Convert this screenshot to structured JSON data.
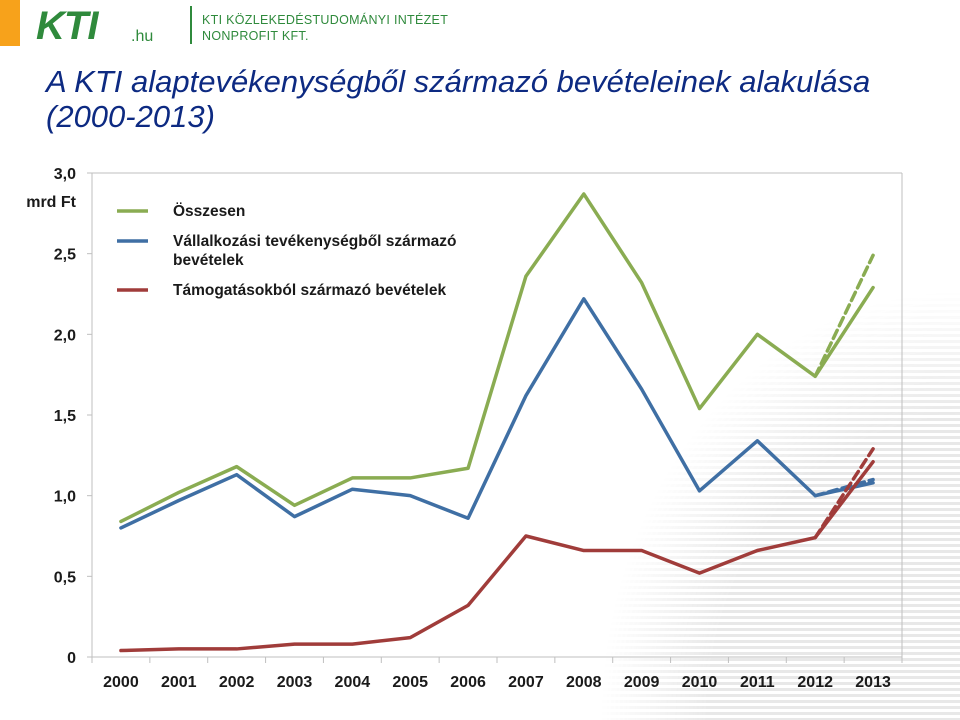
{
  "header": {
    "logo_text": "KTI",
    "logo_domain": ".hu",
    "org_line1": "KTI KÖZLEKEDÉSTUDOMÁNYI INTÉZET",
    "org_line2": "NONPROFIT KFT."
  },
  "slide": {
    "title": "A KTI alaptevékenységből származó bevételeinek alakulása (2000-2013)"
  },
  "chart_data": {
    "type": "line",
    "ylabel": "mrd Ft",
    "ylim": [
      0,
      3.0
    ],
    "y_ticks": [
      "3,0",
      "2,5",
      "2,0",
      "1,5",
      "1,0",
      "0,5",
      "0"
    ],
    "y_tick_values": [
      3.0,
      2.5,
      2.0,
      1.5,
      1.0,
      0.5,
      0
    ],
    "grid": "top line only",
    "legend_position": "top-left",
    "categories": [
      "2000",
      "2001",
      "2002",
      "2003",
      "2004",
      "2005",
      "2006",
      "2007",
      "2008",
      "2009",
      "2010",
      "2011",
      "2012",
      "2013"
    ],
    "series": [
      {
        "name": "Összesen",
        "color": "#8aac52",
        "values": [
          0.84,
          1.02,
          1.18,
          0.94,
          1.11,
          1.11,
          1.17,
          2.36,
          2.87,
          2.32,
          1.54,
          2.0,
          1.74,
          2.29
        ],
        "dashed_forecast": [
          [
            2012,
            1.74
          ],
          [
            2013,
            2.49
          ]
        ]
      },
      {
        "name": "Vállalkozási tevékenységből származó bevételek",
        "color": "#3f6fa4",
        "values": [
          0.8,
          0.97,
          1.13,
          0.87,
          1.04,
          1.0,
          0.86,
          1.62,
          2.22,
          1.66,
          1.03,
          1.34,
          1.0,
          1.08
        ],
        "dashed_forecast": [
          [
            2012,
            1.0
          ],
          [
            2013,
            1.1
          ]
        ]
      },
      {
        "name": "Támogatásokból származó bevételek",
        "color": "#a03c3a",
        "values": [
          0.04,
          0.05,
          0.05,
          0.08,
          0.08,
          0.12,
          0.32,
          0.75,
          0.66,
          0.66,
          0.52,
          0.66,
          0.74,
          1.21
        ],
        "dashed_forecast": [
          [
            2012,
            0.74
          ],
          [
            2013,
            1.29
          ]
        ]
      }
    ]
  }
}
